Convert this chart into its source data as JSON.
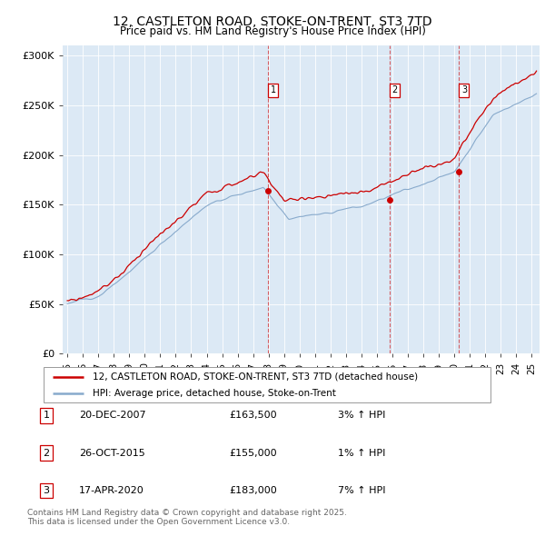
{
  "title": "12, CASTLETON ROAD, STOKE-ON-TRENT, ST3 7TD",
  "subtitle": "Price paid vs. HM Land Registry's House Price Index (HPI)",
  "ylabel_ticks": [
    "£0",
    "£50K",
    "£100K",
    "£150K",
    "£200K",
    "£250K",
    "£300K"
  ],
  "ytick_values": [
    0,
    50000,
    100000,
    150000,
    200000,
    250000,
    300000
  ],
  "ylim": [
    0,
    310000
  ],
  "xlim_start": 1994.7,
  "xlim_end": 2025.5,
  "bg_color": "#dce9f5",
  "line_color_red": "#cc0000",
  "line_color_blue": "#88aacc",
  "purchase_dates": [
    2007.97,
    2015.82,
    2020.3
  ],
  "purchase_prices": [
    163500,
    155000,
    183000
  ],
  "purchase_labels": [
    "1",
    "2",
    "3"
  ],
  "legend_label_red": "12, CASTLETON ROAD, STOKE-ON-TRENT, ST3 7TD (detached house)",
  "legend_label_blue": "HPI: Average price, detached house, Stoke-on-Trent",
  "table_rows": [
    [
      "1",
      "20-DEC-2007",
      "£163,500",
      "3% ↑ HPI"
    ],
    [
      "2",
      "26-OCT-2015",
      "£155,000",
      "1% ↑ HPI"
    ],
    [
      "3",
      "17-APR-2020",
      "£183,000",
      "7% ↑ HPI"
    ]
  ],
  "footer_text": "Contains HM Land Registry data © Crown copyright and database right 2025.\nThis data is licensed under the Open Government Licence v3.0.",
  "xtick_years": [
    1995,
    1996,
    1997,
    1998,
    1999,
    2000,
    2001,
    2002,
    2003,
    2004,
    2005,
    2006,
    2007,
    2008,
    2009,
    2010,
    2011,
    2012,
    2013,
    2014,
    2015,
    2016,
    2017,
    2018,
    2019,
    2020,
    2021,
    2022,
    2023,
    2024,
    2025
  ],
  "seed_hpi": 42,
  "seed_red": 123
}
